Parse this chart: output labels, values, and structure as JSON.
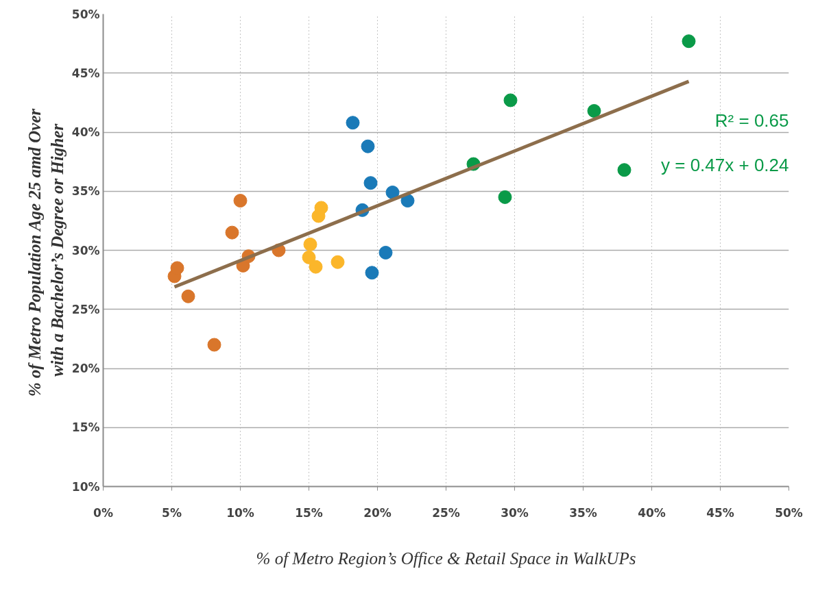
{
  "chart_data": {
    "type": "scatter",
    "xlabel": "% of Metro Region’s Office & Retail Space in WalkUPs",
    "ylabel": "% of Metro Population  Age 25 amd Over\nwith a Bachelor’s Degree or Higher",
    "xlim": [
      0,
      50
    ],
    "ylim": [
      10,
      50
    ],
    "xticks": [
      {
        "value": 0,
        "label": "0%"
      },
      {
        "value": 5,
        "label": "5%"
      },
      {
        "value": 10,
        "label": "10%"
      },
      {
        "value": 15,
        "label": "15%"
      },
      {
        "value": 20,
        "label": "20%"
      },
      {
        "value": 25,
        "label": "25%"
      },
      {
        "value": 30,
        "label": "30%"
      },
      {
        "value": 35,
        "label": "35%"
      },
      {
        "value": 40,
        "label": "40%"
      },
      {
        "value": 45,
        "label": "45%"
      },
      {
        "value": 50,
        "label": "50%"
      }
    ],
    "yticks": [
      {
        "value": 10,
        "label": "10%"
      },
      {
        "value": 15,
        "label": "15%"
      },
      {
        "value": 20,
        "label": "20%"
      },
      {
        "value": 25,
        "label": "25%"
      },
      {
        "value": 30,
        "label": "30%"
      },
      {
        "value": 35,
        "label": "35%"
      },
      {
        "value": 40,
        "label": "40%"
      },
      {
        "value": 45,
        "label": "45%"
      },
      {
        "value": 50,
        "label": "50%"
      }
    ],
    "grid": true,
    "annotations": [
      "R² = 0.65",
      "y = 0.47x + 0.24"
    ],
    "series": [
      {
        "marker": "circle",
        "color": "#d9762b",
        "x": [
          5.2,
          5.4,
          6.2,
          8.1,
          9.4,
          10.0,
          10.2,
          10.6,
          12.8
        ],
        "values": [
          27.8,
          28.5,
          26.1,
          22.0,
          31.5,
          34.2,
          28.7,
          29.5,
          30.0
        ]
      },
      {
        "marker": "circle",
        "color": "#fbb62a",
        "x": [
          15.1,
          15.0,
          15.5,
          15.7,
          15.9,
          17.1
        ],
        "values": [
          30.5,
          29.4,
          28.6,
          32.9,
          33.6,
          29.0
        ]
      },
      {
        "marker": "circle",
        "color": "#1a7ab8",
        "x": [
          18.2,
          19.3,
          19.5,
          18.9,
          19.6,
          20.6,
          21.1,
          22.2
        ],
        "values": [
          40.8,
          38.8,
          35.7,
          33.4,
          28.1,
          29.8,
          34.9,
          34.2
        ]
      },
      {
        "marker": "circle",
        "color": "#0a9a48",
        "x": [
          27.0,
          29.3,
          29.7,
          35.8,
          38.0,
          42.7
        ],
        "values": [
          37.3,
          34.5,
          42.7,
          41.8,
          36.8,
          47.7
        ]
      },
      {
        "type": "line",
        "marker": "none",
        "color": "#8d6e4c",
        "x": [
          5.2,
          42.7
        ],
        "values": [
          26.9,
          44.3
        ]
      }
    ]
  }
}
